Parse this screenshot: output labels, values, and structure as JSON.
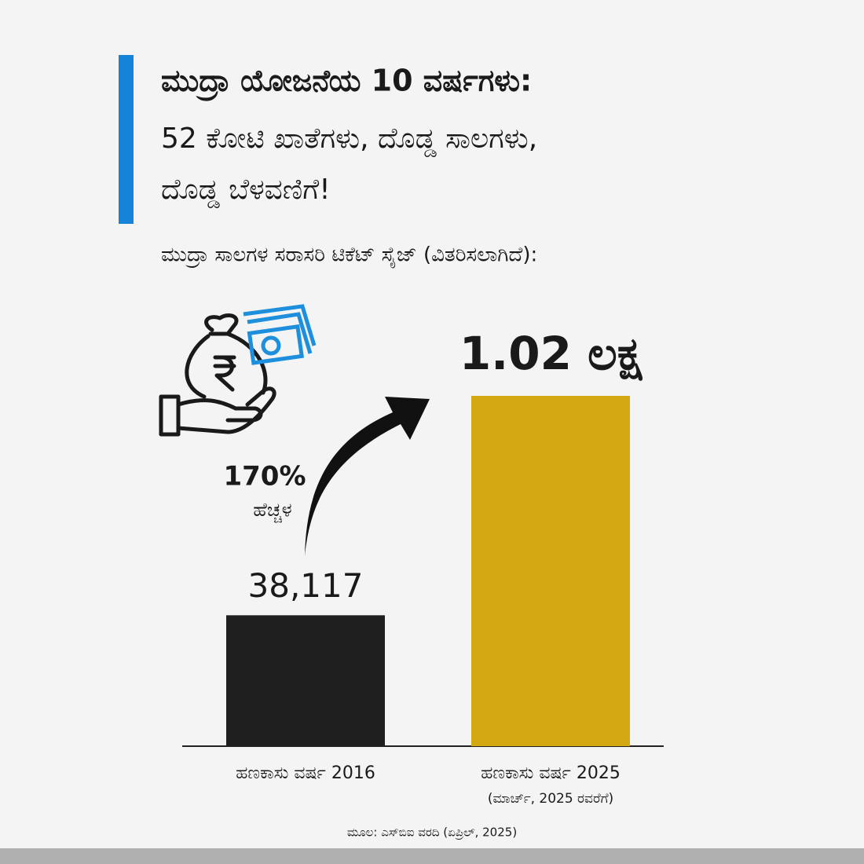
{
  "chart_data": {
    "type": "bar",
    "title_lines": [
      "ಮುದ್ರಾ ಯೋಜನೆಯ 10 ವರ್ಷಗಳು:",
      "52 ಕೋಟಿ ಖಾತೆಗಳು, ದೊಡ್ಡ ಸಾಲಗಳು,",
      "ದೊಡ್ಡ ಬೆಳವಣಿಗೆ!"
    ],
    "subtitle": "ಮುದ್ರಾ ಸಾಲಗಳ ಸರಾಸರಿ ಟಿಕೆಟ್ ಸೈಜ್ (ವಿತರಿಸಲಾಗಿದೆ):",
    "categories": [
      "ಹಣಕಾಸು ವರ್ಷ 2016",
      "ಹಣಕಾಸು ವರ್ಷ 2025"
    ],
    "category_notes": [
      null,
      "(ಮಾರ್ಚ್, 2025 ರವರೆಗೆ)"
    ],
    "values": [
      38117,
      102000
    ],
    "value_labels": [
      "38,117",
      "1.02 ಲಕ್ಷ"
    ],
    "colors": [
      "#1f1f1f",
      "#d4a812"
    ],
    "annotation": {
      "value": "170%",
      "text": "ಹೆಚ್ಚಳ"
    },
    "source": "ಮೂಲ: ಎಸ್‌ಬಿಐ ವರದಿ (ಏಪ್ರಿಲ್, 2025)"
  }
}
